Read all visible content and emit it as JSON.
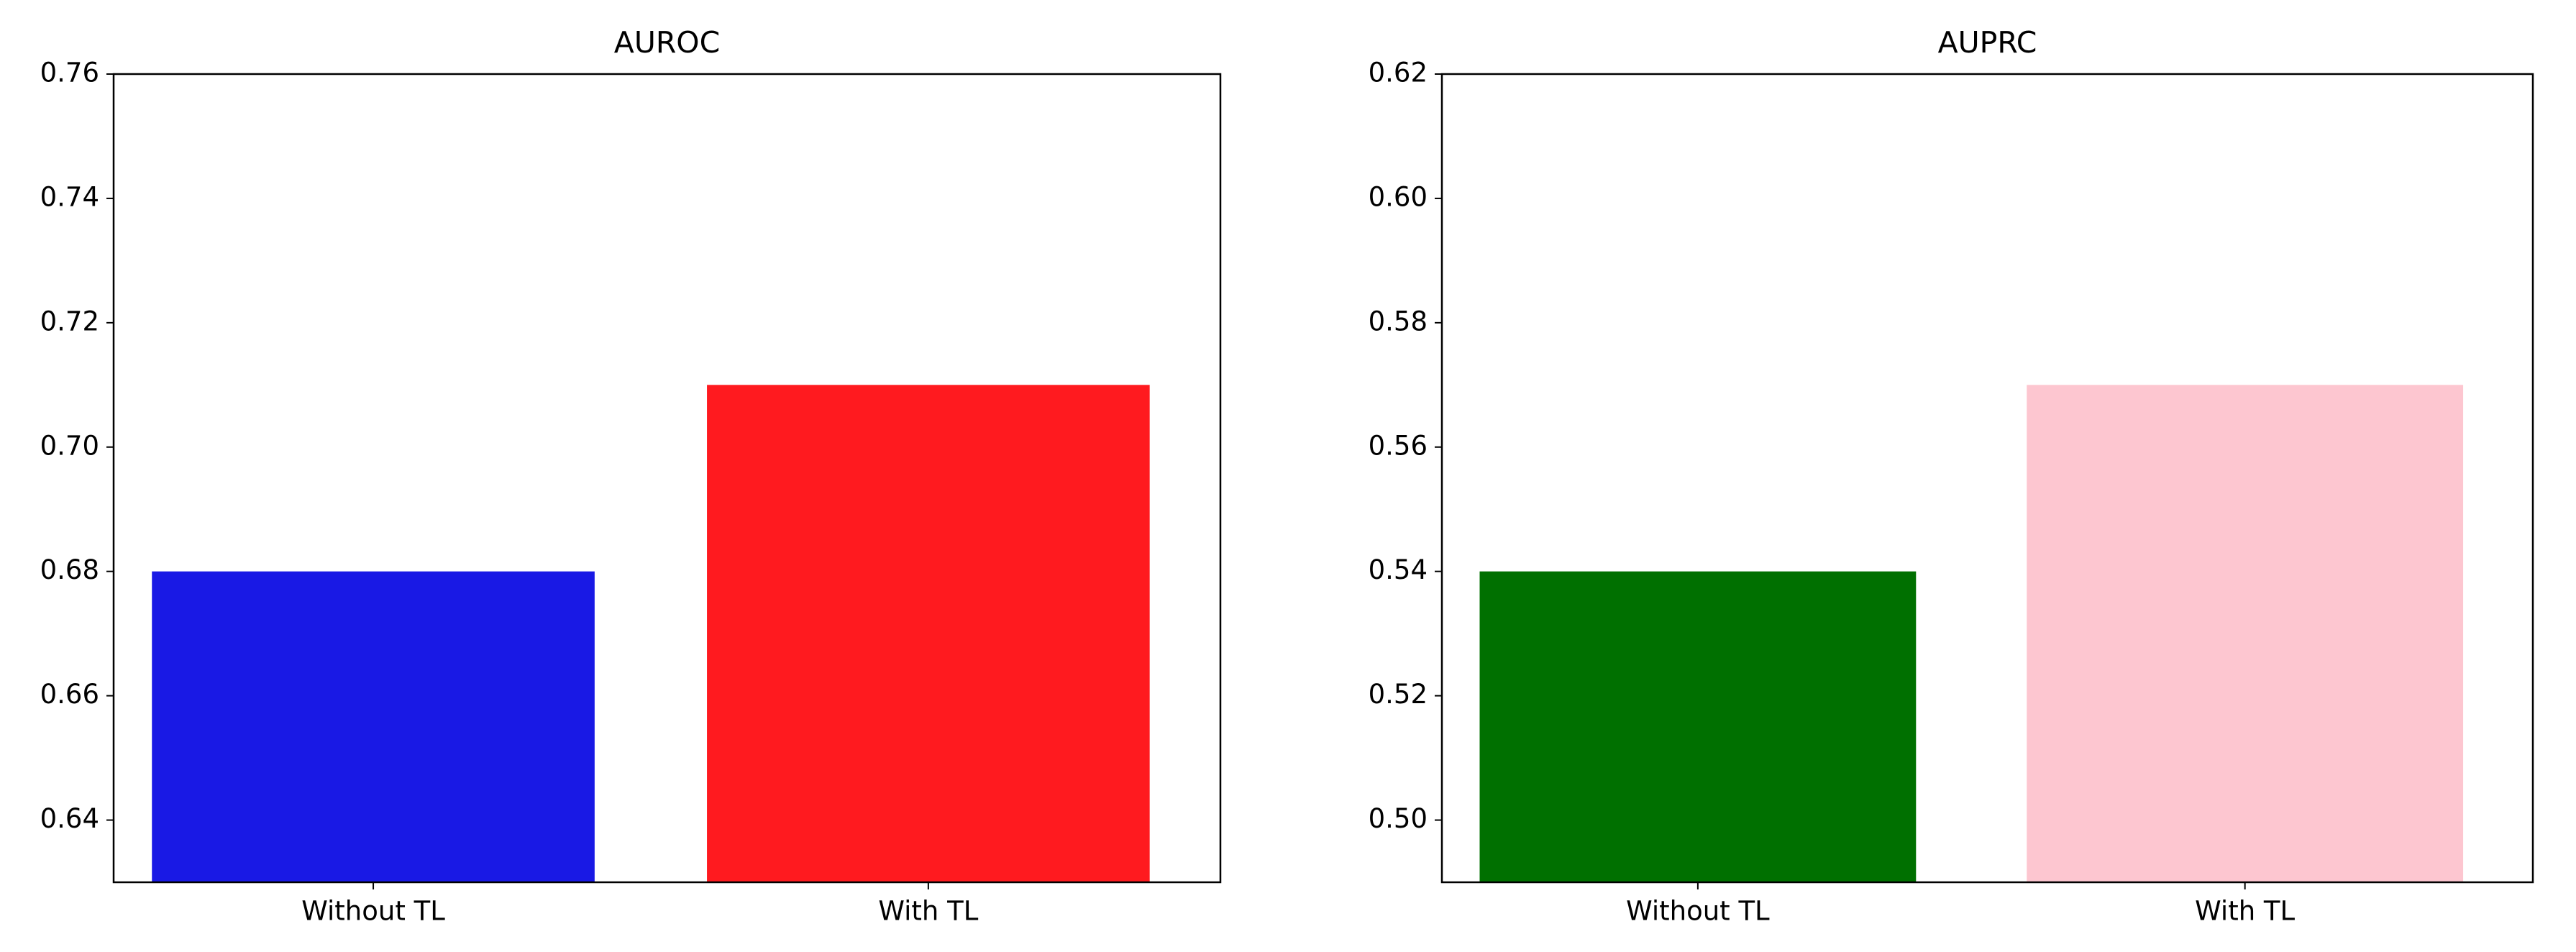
{
  "chart_data": [
    {
      "type": "bar",
      "title": "AUROC",
      "categories": [
        "Without TL",
        "With TL"
      ],
      "series": [
        {
          "values": [
            0.68,
            0.71
          ],
          "colors": [
            "#1919e5",
            "#ff1a1f"
          ]
        }
      ],
      "ylim": [
        0.63,
        0.76
      ],
      "yticks": [
        0.64,
        0.66,
        0.68,
        {
          "value": 0.7,
          "label": "0.70"
        },
        0.72,
        0.74,
        0.76
      ]
    },
    {
      "type": "bar",
      "title": "AUPRC",
      "categories": [
        "Without TL",
        "With TL"
      ],
      "series": [
        {
          "values": [
            0.54,
            0.57
          ],
          "colors": [
            "#007000",
            "#fdc6d0"
          ]
        }
      ],
      "ylim": [
        0.49,
        0.62
      ],
      "yticks": [
        {
          "value": 0.5,
          "label": "0.50"
        },
        0.52,
        0.54,
        0.56,
        0.58,
        {
          "value": 0.6,
          "label": "0.60"
        },
        0.62
      ]
    }
  ]
}
